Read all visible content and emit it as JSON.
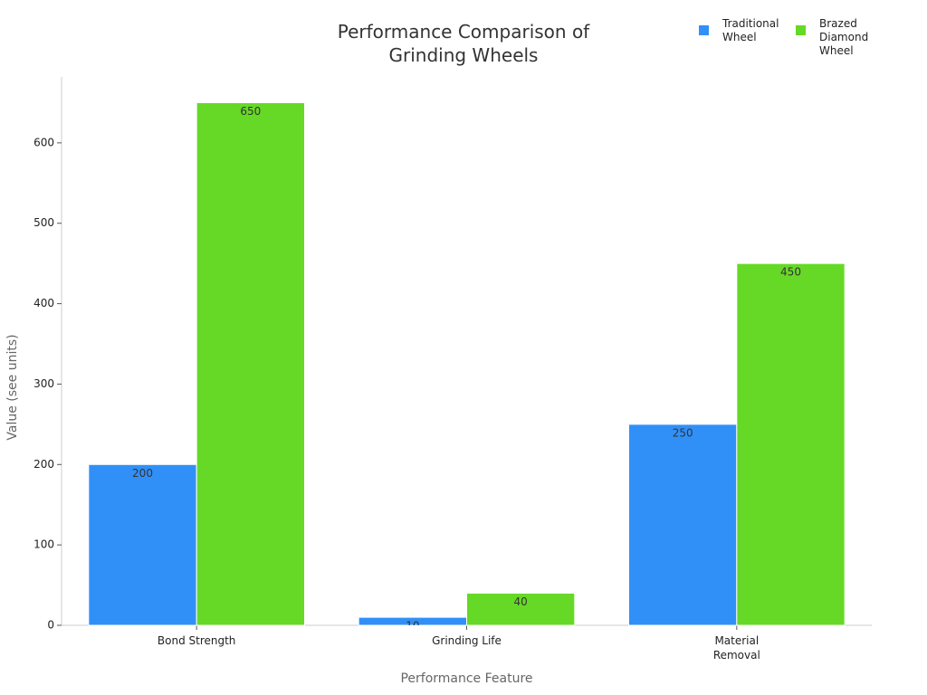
{
  "chart_data": {
    "type": "bar",
    "title": "Performance Comparison of Grinding Wheels",
    "x_label": "Performance Feature",
    "y_label": "Value (see units)",
    "categories": [
      "Bond Strength",
      "Grinding Life",
      "Material Removal"
    ],
    "series": [
      {
        "name": "Traditional Wheel",
        "color": "#3190f7",
        "values": [
          200,
          10,
          250
        ]
      },
      {
        "name": "Brazed Diamond Wheel",
        "color": "#66d926",
        "values": [
          650,
          40,
          450
        ]
      }
    ],
    "ylim": [
      0,
      682
    ],
    "yticks": [
      0,
      100,
      200,
      300,
      400,
      500,
      600
    ],
    "grid": false,
    "legend": "top-right"
  }
}
